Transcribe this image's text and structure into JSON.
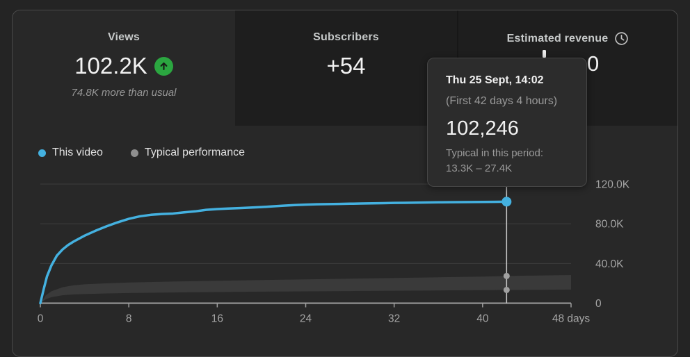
{
  "tabs": [
    {
      "id": "views",
      "label": "Views",
      "value": "102.2K",
      "trend_icon": "up-arrow-icon",
      "subtitle": "74.8K more than usual",
      "selected": true
    },
    {
      "id": "subscribers",
      "label": "Subscribers",
      "value": "+54",
      "selected": false
    },
    {
      "id": "estimated-revenue",
      "label": "Estimated revenue",
      "info_icon": "clock-icon",
      "value_visible": "0",
      "selected": false
    }
  ],
  "legend": [
    {
      "label": "This video",
      "color": "#44b1e0"
    },
    {
      "label": "Typical performance",
      "color": "#8f8f8f"
    }
  ],
  "tooltip": {
    "date": "Thu 25 Sept, 14:02",
    "period": "(First 42 days 4 hours)",
    "value": "102,246",
    "typical_label": "Typical in this period:",
    "typical_range": "13.3K – 27.4K"
  },
  "colors": {
    "accent_blue": "#44b1e0",
    "positive_green": "#2ba640",
    "card_bg": "#282828",
    "tab_bg": "#1e1e1e",
    "tooltip_bg": "#2c2c2c"
  },
  "chart_data": {
    "type": "line",
    "title": "Views over first 48 days",
    "xlabel": "days",
    "ylabel": "Views",
    "xlim": [
      0,
      48
    ],
    "ylim": [
      0,
      120000
    ],
    "grid": true,
    "legend_position": "top-left",
    "x_ticks": [
      {
        "value": 0,
        "label": "0"
      },
      {
        "value": 8,
        "label": "8"
      },
      {
        "value": 16,
        "label": "16"
      },
      {
        "value": 24,
        "label": "24"
      },
      {
        "value": 32,
        "label": "32"
      },
      {
        "value": 40,
        "label": "40"
      },
      {
        "value": 48,
        "label": "48 days"
      }
    ],
    "y_ticks": [
      {
        "value": 0,
        "label": "0"
      },
      {
        "value": 40000,
        "label": "40.0K"
      },
      {
        "value": 80000,
        "label": "80.0K"
      },
      {
        "value": 120000,
        "label": "120.0K"
      }
    ],
    "series": [
      {
        "name": "This video",
        "color": "#44b1e0",
        "points": [
          [
            0,
            0
          ],
          [
            0.3,
            14000
          ],
          [
            0.6,
            27000
          ],
          [
            1,
            38000
          ],
          [
            1.5,
            48000
          ],
          [
            2,
            54000
          ],
          [
            2.5,
            58500
          ],
          [
            3,
            62000
          ],
          [
            4,
            68000
          ],
          [
            5,
            73000
          ],
          [
            6,
            77500
          ],
          [
            7,
            81500
          ],
          [
            8,
            85000
          ],
          [
            9,
            87500
          ],
          [
            10,
            89000
          ],
          [
            11,
            89800
          ],
          [
            12,
            90300
          ],
          [
            13,
            91500
          ],
          [
            14,
            92500
          ],
          [
            15,
            94000
          ],
          [
            16,
            94800
          ],
          [
            17,
            95300
          ],
          [
            18,
            95800
          ],
          [
            19,
            96300
          ],
          [
            20,
            96800
          ],
          [
            21,
            97500
          ],
          [
            22,
            98200
          ],
          [
            23,
            98800
          ],
          [
            24,
            99300
          ],
          [
            25,
            99600
          ],
          [
            26,
            99800
          ],
          [
            27,
            100000
          ],
          [
            28,
            100200
          ],
          [
            29,
            100400
          ],
          [
            30,
            100600
          ],
          [
            31,
            100800
          ],
          [
            32,
            101000
          ],
          [
            33,
            101150
          ],
          [
            34,
            101300
          ],
          [
            35,
            101450
          ],
          [
            36,
            101600
          ],
          [
            37,
            101700
          ],
          [
            38,
            101800
          ],
          [
            39,
            101900
          ],
          [
            40,
            102000
          ],
          [
            41,
            102100
          ],
          [
            42.17,
            102246
          ]
        ]
      }
    ],
    "band": {
      "name": "Typical performance",
      "color": "#3a3a3a",
      "upper": [
        [
          0,
          0
        ],
        [
          0.5,
          8000
        ],
        [
          1,
          12000
        ],
        [
          2,
          16000
        ],
        [
          3,
          18000
        ],
        [
          4,
          19000
        ],
        [
          6,
          20000
        ],
        [
          8,
          20800
        ],
        [
          12,
          21800
        ],
        [
          16,
          22600
        ],
        [
          20,
          23300
        ],
        [
          24,
          24000
        ],
        [
          28,
          24700
        ],
        [
          32,
          25400
        ],
        [
          36,
          26100
        ],
        [
          40,
          26800
        ],
        [
          42.17,
          27400
        ],
        [
          44,
          27700
        ],
        [
          48,
          28300
        ]
      ],
      "lower": [
        [
          0,
          0
        ],
        [
          0.5,
          4000
        ],
        [
          1,
          6000
        ],
        [
          2,
          8000
        ],
        [
          3,
          8800
        ],
        [
          4,
          9200
        ],
        [
          6,
          9800
        ],
        [
          8,
          10200
        ],
        [
          12,
          10800
        ],
        [
          16,
          11200
        ],
        [
          20,
          11600
        ],
        [
          24,
          11900
        ],
        [
          28,
          12200
        ],
        [
          32,
          12500
        ],
        [
          36,
          12800
        ],
        [
          40,
          13100
        ],
        [
          42.17,
          13300
        ],
        [
          44,
          13400
        ],
        [
          48,
          13700
        ]
      ]
    },
    "marker": {
      "day": 42.17,
      "value": 102246
    },
    "band_marker_values": [
      27400,
      13300
    ],
    "style": {
      "grid_color": "#3d3d3d",
      "axis_color": "#9e9e9e",
      "tick_label_color": "#a5a5a5",
      "marker_line_color": "#c9c9c9",
      "band_dot_color": "#a0a0a0"
    }
  }
}
